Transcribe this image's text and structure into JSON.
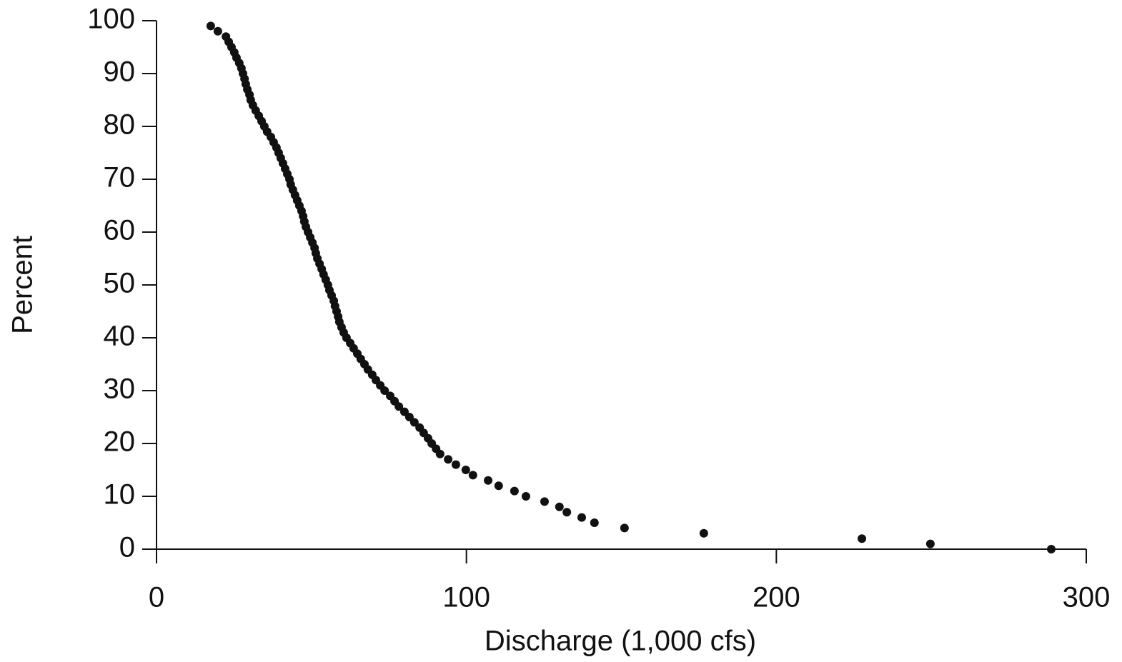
{
  "chart_data": {
    "type": "scatter",
    "xlabel": "Discharge (1,000 cfs)",
    "ylabel": "Percent",
    "x": [
      288.7,
      249.7,
      227.6,
      176.6,
      151.0,
      141.3,
      137.2,
      132.4,
      130.0,
      125.2,
      119.2,
      115.5,
      110.4,
      107.0,
      102.1,
      99.8,
      96.6,
      94.1,
      91.5,
      90.2,
      88.8,
      87.6,
      86.2,
      84.9,
      83.2,
      81.6,
      80.0,
      78.2,
      76.8,
      75.4,
      73.6,
      72.2,
      70.8,
      69.6,
      68.2,
      67.1,
      65.9,
      64.8,
      63.6,
      62.5,
      61.3,
      60.4,
      59.7,
      59.0,
      58.6,
      58.1,
      57.6,
      57.2,
      56.5,
      55.8,
      55.3,
      54.6,
      53.9,
      53.3,
      52.6,
      51.9,
      51.4,
      51.0,
      50.3,
      49.6,
      48.9,
      48.2,
      47.7,
      47.3,
      46.8,
      46.1,
      45.4,
      44.7,
      44.0,
      43.3,
      42.9,
      42.2,
      41.5,
      40.8,
      40.1,
      39.4,
      38.7,
      37.8,
      36.9,
      35.7,
      34.8,
      33.9,
      33.0,
      32.0,
      31.1,
      30.4,
      30.0,
      29.3,
      28.8,
      28.4,
      27.9,
      27.4,
      26.7,
      25.8,
      25.1,
      24.2,
      23.3,
      22.4,
      19.8,
      17.5
    ],
    "values": [
      0,
      1,
      2,
      3,
      4,
      5,
      6,
      7,
      8,
      9,
      10,
      11,
      12,
      13,
      14,
      15,
      16,
      17,
      18,
      19,
      20,
      21,
      22,
      23,
      24,
      25,
      26,
      27,
      28,
      29,
      30,
      31,
      32,
      33,
      34,
      35,
      36,
      37,
      38,
      39,
      40,
      41,
      42,
      43,
      44,
      45,
      46,
      47,
      48,
      49,
      50,
      51,
      52,
      53,
      54,
      55,
      56,
      57,
      58,
      59,
      60,
      61,
      62,
      63,
      64,
      65,
      66,
      67,
      68,
      69,
      70,
      71,
      72,
      73,
      74,
      75,
      76,
      77,
      78,
      79,
      80,
      81,
      82,
      83,
      84,
      85,
      86,
      87,
      88,
      89,
      90,
      91,
      92,
      93,
      94,
      95,
      96,
      97,
      98,
      99
    ],
    "color": "#111111",
    "xlim": [
      0,
      300
    ],
    "xticks": [
      0,
      100,
      200,
      300
    ],
    "ylim": [
      0,
      100
    ],
    "yticks": [
      0,
      10,
      20,
      30,
      40,
      50,
      60,
      70,
      80,
      90,
      100
    ],
    "grid": false
  }
}
